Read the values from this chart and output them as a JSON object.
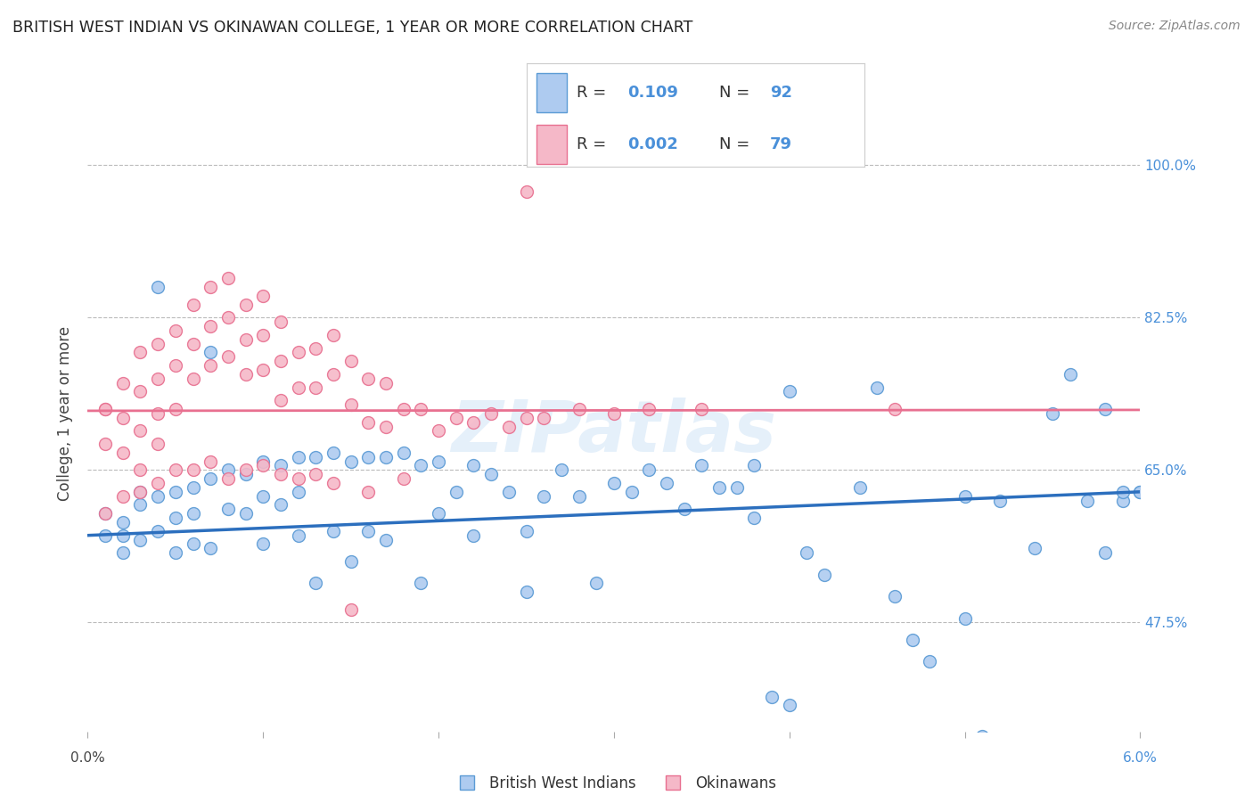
{
  "title": "BRITISH WEST INDIAN VS OKINAWAN COLLEGE, 1 YEAR OR MORE CORRELATION CHART",
  "source": "Source: ZipAtlas.com",
  "ylabel": "College, 1 year or more",
  "legend_entries": [
    {
      "label": "British West Indians",
      "R": "0.109",
      "N": "92",
      "color": "#aecbf0",
      "edge_color": "#5b9bd5",
      "line_color": "#2c6fbe"
    },
    {
      "label": "Okinawans",
      "R": "0.002",
      "N": "79",
      "color": "#f5b8c8",
      "edge_color": "#e87090",
      "line_color": "#e87090"
    }
  ],
  "watermark": "ZIPatlas",
  "background_color": "#ffffff",
  "grid_color": "#bbbbbb",
  "title_color": "#222222",
  "source_color": "#888888",
  "right_tick_color": "#4a90d9",
  "xlim": [
    0.0,
    0.06
  ],
  "ylim": [
    0.35,
    1.08
  ],
  "ytick_positions": [
    0.475,
    0.65,
    0.825,
    1.0
  ],
  "ytick_labels": [
    "47.5%",
    "65.0%",
    "82.5%",
    "100.0%"
  ],
  "blue_scatter_x": [
    0.001,
    0.001,
    0.002,
    0.002,
    0.003,
    0.003,
    0.004,
    0.004,
    0.005,
    0.005,
    0.005,
    0.006,
    0.006,
    0.006,
    0.007,
    0.007,
    0.007,
    0.008,
    0.008,
    0.009,
    0.009,
    0.01,
    0.01,
    0.01,
    0.011,
    0.011,
    0.012,
    0.012,
    0.012,
    0.013,
    0.013,
    0.014,
    0.014,
    0.015,
    0.015,
    0.016,
    0.016,
    0.017,
    0.017,
    0.018,
    0.019,
    0.019,
    0.02,
    0.02,
    0.021,
    0.022,
    0.022,
    0.023,
    0.024,
    0.025,
    0.025,
    0.026,
    0.027,
    0.028,
    0.029,
    0.03,
    0.031,
    0.032,
    0.033,
    0.034,
    0.035,
    0.036,
    0.037,
    0.038,
    0.039,
    0.04,
    0.041,
    0.042,
    0.044,
    0.045,
    0.046,
    0.047,
    0.048,
    0.05,
    0.051,
    0.052,
    0.054,
    0.055,
    0.056,
    0.057,
    0.058,
    0.059,
    0.06,
    0.002,
    0.003,
    0.004,
    0.04,
    0.038,
    0.05,
    0.058,
    0.059,
    0.06
  ],
  "blue_scatter_y": [
    0.6,
    0.575,
    0.59,
    0.555,
    0.61,
    0.57,
    0.62,
    0.58,
    0.625,
    0.595,
    0.555,
    0.63,
    0.6,
    0.565,
    0.785,
    0.64,
    0.56,
    0.65,
    0.605,
    0.645,
    0.6,
    0.66,
    0.62,
    0.565,
    0.655,
    0.61,
    0.665,
    0.625,
    0.575,
    0.665,
    0.52,
    0.67,
    0.58,
    0.66,
    0.545,
    0.665,
    0.58,
    0.665,
    0.57,
    0.67,
    0.655,
    0.52,
    0.66,
    0.6,
    0.625,
    0.655,
    0.575,
    0.645,
    0.625,
    0.58,
    0.51,
    0.62,
    0.65,
    0.62,
    0.52,
    0.635,
    0.625,
    0.65,
    0.635,
    0.605,
    0.655,
    0.63,
    0.63,
    0.595,
    0.39,
    0.38,
    0.555,
    0.53,
    0.63,
    0.745,
    0.505,
    0.455,
    0.43,
    0.48,
    0.345,
    0.615,
    0.56,
    0.715,
    0.76,
    0.615,
    0.72,
    0.615,
    0.625,
    0.575,
    0.625,
    0.86,
    0.74,
    0.655,
    0.62,
    0.555,
    0.625,
    0.625
  ],
  "pink_scatter_x": [
    0.001,
    0.001,
    0.001,
    0.002,
    0.002,
    0.002,
    0.003,
    0.003,
    0.003,
    0.003,
    0.004,
    0.004,
    0.004,
    0.004,
    0.005,
    0.005,
    0.005,
    0.006,
    0.006,
    0.006,
    0.007,
    0.007,
    0.007,
    0.008,
    0.008,
    0.008,
    0.009,
    0.009,
    0.009,
    0.01,
    0.01,
    0.01,
    0.011,
    0.011,
    0.011,
    0.012,
    0.012,
    0.013,
    0.013,
    0.014,
    0.014,
    0.015,
    0.015,
    0.016,
    0.016,
    0.017,
    0.017,
    0.018,
    0.019,
    0.02,
    0.021,
    0.022,
    0.023,
    0.024,
    0.025,
    0.026,
    0.028,
    0.03,
    0.032,
    0.035,
    0.001,
    0.002,
    0.003,
    0.004,
    0.005,
    0.006,
    0.007,
    0.008,
    0.009,
    0.01,
    0.011,
    0.012,
    0.013,
    0.014,
    0.016,
    0.018,
    0.046,
    0.015,
    0.025
  ],
  "pink_scatter_y": [
    0.72,
    0.68,
    0.72,
    0.75,
    0.71,
    0.67,
    0.785,
    0.74,
    0.695,
    0.65,
    0.795,
    0.755,
    0.715,
    0.68,
    0.81,
    0.77,
    0.72,
    0.84,
    0.795,
    0.755,
    0.86,
    0.815,
    0.77,
    0.87,
    0.825,
    0.78,
    0.84,
    0.8,
    0.76,
    0.85,
    0.805,
    0.765,
    0.82,
    0.775,
    0.73,
    0.785,
    0.745,
    0.79,
    0.745,
    0.805,
    0.76,
    0.775,
    0.725,
    0.755,
    0.705,
    0.75,
    0.7,
    0.72,
    0.72,
    0.695,
    0.71,
    0.705,
    0.715,
    0.7,
    0.71,
    0.71,
    0.72,
    0.715,
    0.72,
    0.72,
    0.6,
    0.62,
    0.625,
    0.635,
    0.65,
    0.65,
    0.66,
    0.64,
    0.65,
    0.655,
    0.645,
    0.64,
    0.645,
    0.635,
    0.625,
    0.64,
    0.72,
    0.49,
    0.97
  ],
  "blue_line_x": [
    0.0,
    0.06
  ],
  "blue_line_y": [
    0.575,
    0.625
  ],
  "pink_line_x": [
    0.0,
    0.06
  ],
  "pink_line_y": [
    0.718,
    0.719
  ]
}
